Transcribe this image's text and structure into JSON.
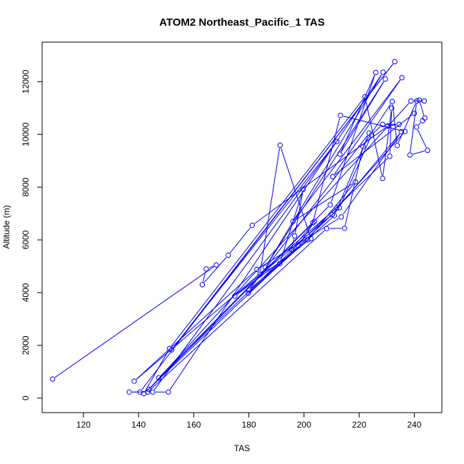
{
  "chart_data": {
    "type": "line",
    "title": "ATOM2 Northeast_Pacific_1 TAS",
    "xlabel": "TAS",
    "ylabel": "Altitude (m)",
    "xlim": [
      105,
      250
    ],
    "ylim": [
      -550,
      13500
    ],
    "xticks": [
      120,
      140,
      160,
      180,
      200,
      220,
      240
    ],
    "yticks": [
      0,
      2000,
      4000,
      6000,
      8000,
      10000,
      12000
    ],
    "grid": false,
    "marker": "open-circle",
    "color": "#0000ff",
    "series": [
      {
        "points": [
          [
            108.8,
            720
          ],
          [
            168.2,
            5050
          ],
          [
            164.5,
            4900
          ],
          [
            163.1,
            4300
          ],
          [
            172.5,
            5420
          ],
          [
            181.2,
            6550
          ],
          [
            230.4,
            10320
          ],
          [
            234.5,
            10380
          ],
          [
            228.5,
            10380
          ],
          [
            224.5,
            9980
          ],
          [
            212.8,
            7220
          ],
          [
            141.9,
            170
          ],
          [
            151.2,
            1880
          ],
          [
            222.1,
            11430
          ],
          [
            228.5,
            8330
          ],
          [
            231.8,
            11000
          ],
          [
            231.1,
            9170
          ],
          [
            147.3,
            770
          ],
          [
            209.5,
            7330
          ],
          [
            226.0,
            12350
          ],
          [
            213.0,
            9250
          ],
          [
            229.5,
            12100
          ],
          [
            186.0,
            4960
          ],
          [
            228.7,
            12360
          ],
          [
            150.8,
            230
          ],
          [
            145.1,
            230
          ],
          [
            211.9,
            9730
          ],
          [
            152.0,
            1830
          ],
          [
            232.9,
            12760
          ],
          [
            140.5,
            230
          ],
          [
            136.6,
            230
          ],
          [
            143.3,
            230
          ],
          [
            208.2,
            6430
          ],
          [
            214.7,
            6440
          ],
          [
            221.4,
            9540
          ],
          [
            232.0,
            11250
          ],
          [
            233.8,
            9580
          ],
          [
            240.9,
            11270
          ],
          [
            238.4,
            9220
          ],
          [
            244.8,
            9400
          ],
          [
            240.8,
            10280
          ],
          [
            243.0,
            10520
          ],
          [
            243.8,
            10620
          ],
          [
            241.8,
            11300
          ],
          [
            243.6,
            11270
          ],
          [
            238.8,
            11270
          ],
          [
            143.7,
            330
          ],
          [
            203.2,
            6650
          ],
          [
            213.2,
            10720
          ],
          [
            236.6,
            10110
          ],
          [
            211.9,
            7220
          ],
          [
            138.4,
            640
          ],
          [
            182.9,
            4880
          ],
          [
            213.5,
            6870
          ],
          [
            235.3,
            10100
          ],
          [
            210.2,
            6960
          ],
          [
            174.9,
            3870
          ],
          [
            202.5,
            6050
          ],
          [
            191.3,
            9590
          ],
          [
            184.0,
            4700
          ],
          [
            191.2,
            5100
          ],
          [
            199.7,
            7920
          ],
          [
            196.6,
            6150
          ],
          [
            195.5,
            5640
          ],
          [
            203.8,
            6700
          ],
          [
            197.9,
            5770
          ],
          [
            179.8,
            3980
          ],
          [
            211.0,
            6920
          ],
          [
            223.6,
            10050
          ],
          [
            180.0,
            4100
          ],
          [
            201.3,
            6000
          ],
          [
            218.6,
            8200
          ],
          [
            196.0,
            6700
          ],
          [
            235.5,
            12150
          ],
          [
            210.4,
            8400
          ],
          [
            240.0,
            10800
          ]
        ]
      }
    ]
  }
}
